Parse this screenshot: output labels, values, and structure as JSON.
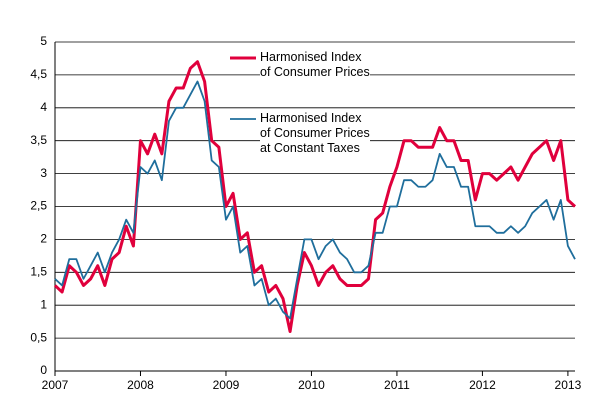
{
  "chart_data": {
    "type": "line",
    "x": [
      2007,
      2007.083,
      2007.167,
      2007.25,
      2007.333,
      2007.417,
      2007.5,
      2007.583,
      2007.667,
      2007.75,
      2007.833,
      2007.917,
      2008,
      2008.083,
      2008.167,
      2008.25,
      2008.333,
      2008.417,
      2008.5,
      2008.583,
      2008.667,
      2008.75,
      2008.833,
      2008.917,
      2009,
      2009.083,
      2009.167,
      2009.25,
      2009.333,
      2009.417,
      2009.5,
      2009.583,
      2009.667,
      2009.75,
      2009.833,
      2009.917,
      2010,
      2010.083,
      2010.167,
      2010.25,
      2010.333,
      2010.417,
      2010.5,
      2010.583,
      2010.667,
      2010.75,
      2010.833,
      2010.917,
      2011,
      2011.083,
      2011.167,
      2011.25,
      2011.333,
      2011.417,
      2011.5,
      2011.583,
      2011.667,
      2011.75,
      2011.833,
      2011.917,
      2012,
      2012.083,
      2012.167,
      2012.25,
      2012.333,
      2012.417,
      2012.5,
      2012.583,
      2012.667,
      2012.75,
      2012.833,
      2012.917,
      2013,
      2013.083
    ],
    "series": [
      {
        "name": "Harmonised Index\nof Consumer Prices",
        "color": "#e0003c",
        "values": [
          1.3,
          1.2,
          1.6,
          1.5,
          1.3,
          1.4,
          1.6,
          1.3,
          1.7,
          1.8,
          2.2,
          1.9,
          3.5,
          3.3,
          3.6,
          3.3,
          4.1,
          4.3,
          4.3,
          4.6,
          4.7,
          4.4,
          3.5,
          3.4,
          2.5,
          2.7,
          2.0,
          2.1,
          1.5,
          1.6,
          1.2,
          1.3,
          1.1,
          0.6,
          1.3,
          1.8,
          1.6,
          1.3,
          1.5,
          1.6,
          1.4,
          1.3,
          1.3,
          1.3,
          1.4,
          2.3,
          2.4,
          2.8,
          3.1,
          3.5,
          3.5,
          3.4,
          3.4,
          3.4,
          3.7,
          3.5,
          3.5,
          3.2,
          3.2,
          2.6,
          3.0,
          3.0,
          2.9,
          3.0,
          3.1,
          2.9,
          3.1,
          3.3,
          3.4,
          3.5,
          3.2,
          3.5,
          2.6,
          2.5
        ]
      },
      {
        "name": "Harmonised Index\nof Consumer Prices\nat Constant Taxes",
        "color": "#1f6e9c",
        "values": [
          1.4,
          1.3,
          1.7,
          1.7,
          1.4,
          1.6,
          1.8,
          1.5,
          1.8,
          2.0,
          2.3,
          2.1,
          3.1,
          3.0,
          3.2,
          2.9,
          3.8,
          4.0,
          4.0,
          4.2,
          4.4,
          4.1,
          3.2,
          3.1,
          2.3,
          2.5,
          1.8,
          1.9,
          1.3,
          1.4,
          1.0,
          1.1,
          0.9,
          0.8,
          1.4,
          2.0,
          2.0,
          1.7,
          1.9,
          2.0,
          1.8,
          1.7,
          1.5,
          1.5,
          1.6,
          2.1,
          2.1,
          2.5,
          2.5,
          2.9,
          2.9,
          2.8,
          2.8,
          2.9,
          3.3,
          3.1,
          3.1,
          2.8,
          2.8,
          2.2,
          2.2,
          2.2,
          2.1,
          2.1,
          2.2,
          2.1,
          2.2,
          2.4,
          2.5,
          2.6,
          2.3,
          2.6,
          1.9,
          1.7
        ]
      }
    ],
    "xlim": [
      2007,
      2013.083
    ],
    "xticks": [
      2007,
      2008,
      2009,
      2010,
      2011,
      2012,
      2013
    ],
    "ylim": [
      0,
      5
    ],
    "yticks": [
      0,
      {
        "value": 0.5,
        "label": "0,5"
      },
      1,
      {
        "value": 1.5,
        "label": "1,5"
      },
      2,
      {
        "value": 2.5,
        "label": "2,5"
      },
      3,
      {
        "value": 3.5,
        "label": "3,5"
      },
      4,
      {
        "value": 4.5,
        "label": "4,5"
      },
      5
    ],
    "grid": true
  }
}
